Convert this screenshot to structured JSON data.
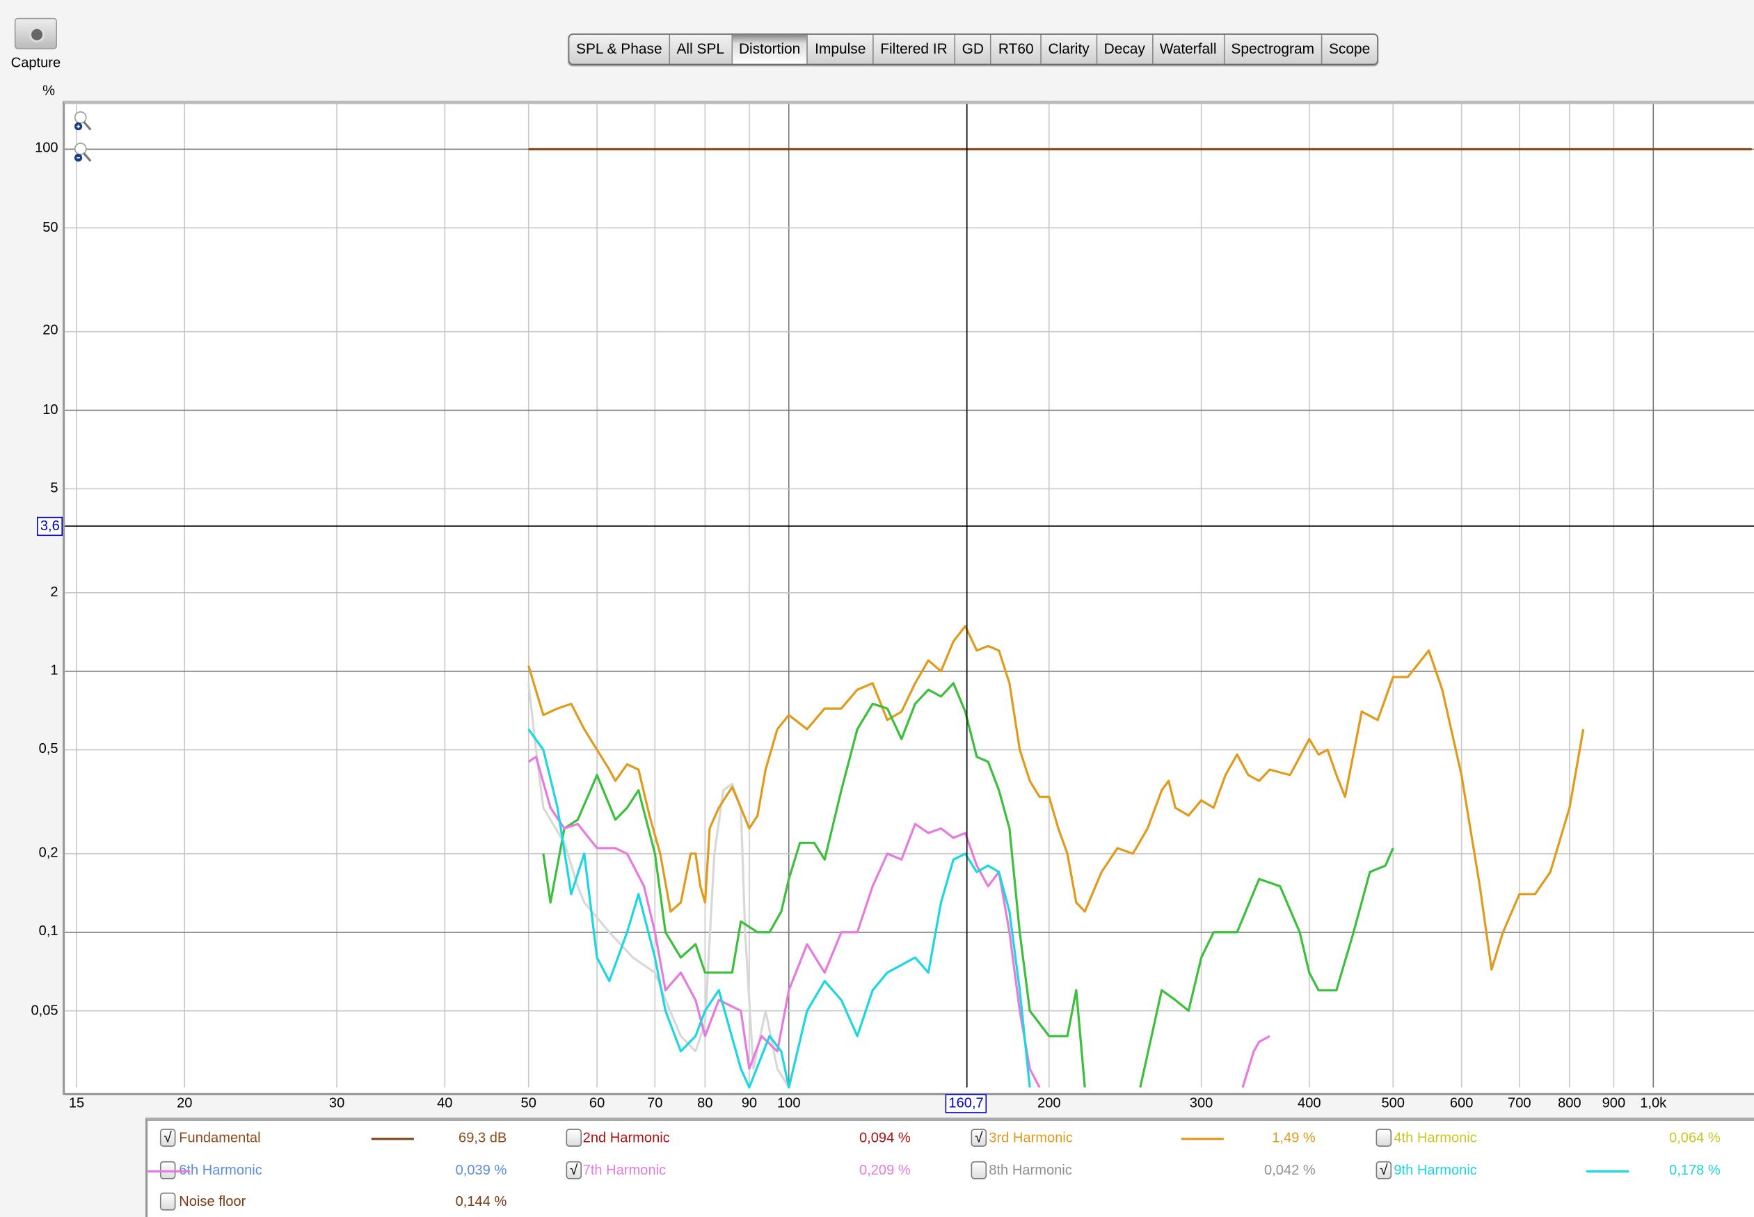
{
  "capture": {
    "label": "Capture",
    "icon": "camera-icon"
  },
  "toolbar": {
    "tabs": [
      "SPL & Phase",
      "All SPL",
      "Distortion",
      "Impulse",
      "Filtered IR",
      "GD",
      "RT60",
      "Clarity",
      "Decay",
      "Waterfall",
      "Spectrogram",
      "Scope"
    ],
    "active": "Distortion"
  },
  "cursor": {
    "x_readout": "160,7",
    "y_readout": "3,6"
  },
  "chart_data": {
    "type": "line",
    "yunit": "%",
    "xscale": "log",
    "yscale": "log",
    "xlim": [
      14.5,
      1300
    ],
    "ylim": [
      0.025,
      147
    ],
    "grid": true,
    "x_ticks": [
      15,
      20,
      30,
      40,
      50,
      60,
      70,
      80,
      90,
      100,
      200,
      300,
      400,
      500,
      600,
      700,
      800,
      900,
      1000
    ],
    "x_tick_labels": [
      "15",
      "20",
      "30",
      "40",
      "50",
      "60",
      "70",
      "80",
      "90",
      "100",
      "200",
      "300",
      "400",
      "500",
      "600",
      "700",
      "800",
      "900",
      "1,0k"
    ],
    "y_ticks": [
      100,
      50,
      20,
      10,
      5,
      2,
      1,
      0.5,
      0.2,
      0.1,
      0.05
    ],
    "y_tick_labels": [
      "100",
      "50",
      "20",
      "10",
      "5",
      "2",
      "1",
      "0,5",
      "0,2",
      "0,1",
      "0,05"
    ],
    "cursor_x": 160.7,
    "cursor_y": 3.6,
    "series": [
      {
        "name": "Fundamental",
        "color": "#8b4a1c",
        "points": [
          [
            50,
            100
          ],
          [
            1300,
            100
          ]
        ]
      },
      {
        "color": "#d8d8d8",
        "points": [
          [
            50,
            0.9
          ],
          [
            51,
            0.5
          ],
          [
            52,
            0.3
          ],
          [
            55,
            0.22
          ],
          [
            57,
            0.15
          ],
          [
            58,
            0.13
          ],
          [
            62,
            0.1
          ],
          [
            66,
            0.08
          ],
          [
            70,
            0.07
          ],
          [
            72,
            0.055
          ],
          [
            75,
            0.04
          ],
          [
            78,
            0.035
          ],
          [
            80,
            0.045
          ],
          [
            82,
            0.2
          ],
          [
            84,
            0.35
          ],
          [
            86,
            0.37
          ],
          [
            88,
            0.3
          ],
          [
            89,
            0.1
          ],
          [
            91,
            0.03
          ],
          [
            94,
            0.05
          ],
          [
            97,
            0.03
          ],
          [
            100,
            0.025
          ]
        ]
      },
      {
        "name": "3rd Harmonic",
        "color": "#e09a1c",
        "points": [
          [
            50,
            1.05
          ],
          [
            52,
            0.68
          ],
          [
            54,
            0.72
          ],
          [
            56,
            0.75
          ],
          [
            58,
            0.6
          ],
          [
            60,
            0.5
          ],
          [
            62,
            0.42
          ],
          [
            63,
            0.38
          ],
          [
            65,
            0.44
          ],
          [
            67,
            0.42
          ],
          [
            69,
            0.28
          ],
          [
            71,
            0.2
          ],
          [
            73,
            0.12
          ],
          [
            75,
            0.13
          ],
          [
            77,
            0.2
          ],
          [
            78,
            0.2
          ],
          [
            79,
            0.15
          ],
          [
            80,
            0.13
          ],
          [
            81,
            0.25
          ],
          [
            83,
            0.3
          ],
          [
            86,
            0.36
          ],
          [
            88,
            0.3
          ],
          [
            90,
            0.25
          ],
          [
            92,
            0.28
          ],
          [
            94,
            0.42
          ],
          [
            97,
            0.6
          ],
          [
            100,
            0.68
          ],
          [
            105,
            0.6
          ],
          [
            110,
            0.72
          ],
          [
            115,
            0.72
          ],
          [
            120,
            0.85
          ],
          [
            125,
            0.9
          ],
          [
            130,
            0.65
          ],
          [
            135,
            0.7
          ],
          [
            140,
            0.9
          ],
          [
            145,
            1.1
          ],
          [
            150,
            1.0
          ],
          [
            155,
            1.3
          ],
          [
            160,
            1.49
          ],
          [
            165,
            1.2
          ],
          [
            170,
            1.25
          ],
          [
            175,
            1.2
          ],
          [
            180,
            0.9
          ],
          [
            185,
            0.5
          ],
          [
            190,
            0.38
          ],
          [
            195,
            0.33
          ],
          [
            200,
            0.33
          ],
          [
            205,
            0.25
          ],
          [
            210,
            0.2
          ],
          [
            215,
            0.13
          ],
          [
            220,
            0.12
          ],
          [
            230,
            0.17
          ],
          [
            240,
            0.21
          ],
          [
            250,
            0.2
          ],
          [
            260,
            0.25
          ],
          [
            270,
            0.35
          ],
          [
            275,
            0.38
          ],
          [
            280,
            0.3
          ],
          [
            290,
            0.28
          ],
          [
            300,
            0.32
          ],
          [
            310,
            0.3
          ],
          [
            320,
            0.4
          ],
          [
            330,
            0.48
          ],
          [
            340,
            0.4
          ],
          [
            350,
            0.38
          ],
          [
            360,
            0.42
          ],
          [
            380,
            0.4
          ],
          [
            400,
            0.55
          ],
          [
            410,
            0.48
          ],
          [
            420,
            0.5
          ],
          [
            430,
            0.4
          ],
          [
            440,
            0.33
          ],
          [
            460,
            0.7
          ],
          [
            480,
            0.65
          ],
          [
            500,
            0.95
          ],
          [
            520,
            0.95
          ],
          [
            550,
            1.2
          ],
          [
            570,
            0.85
          ],
          [
            600,
            0.4
          ],
          [
            630,
            0.15
          ],
          [
            650,
            0.072
          ],
          [
            670,
            0.1
          ],
          [
            700,
            0.14
          ],
          [
            730,
            0.14
          ],
          [
            760,
            0.17
          ],
          [
            800,
            0.3
          ],
          [
            830,
            0.6
          ]
        ]
      },
      {
        "color": "#3cbf3c",
        "points": [
          [
            52,
            0.2
          ],
          [
            53,
            0.13
          ],
          [
            55,
            0.25
          ],
          [
            57,
            0.27
          ],
          [
            60,
            0.4
          ],
          [
            63,
            0.27
          ],
          [
            65,
            0.3
          ],
          [
            67,
            0.35
          ],
          [
            70,
            0.2
          ],
          [
            72,
            0.1
          ],
          [
            75,
            0.08
          ],
          [
            78,
            0.09
          ],
          [
            80,
            0.07
          ],
          [
            83,
            0.07
          ],
          [
            86,
            0.07
          ],
          [
            88,
            0.11
          ],
          [
            92,
            0.1
          ],
          [
            95,
            0.1
          ],
          [
            98,
            0.12
          ],
          [
            100,
            0.16
          ],
          [
            103,
            0.22
          ],
          [
            107,
            0.22
          ],
          [
            110,
            0.19
          ],
          [
            115,
            0.35
          ],
          [
            120,
            0.6
          ],
          [
            125,
            0.75
          ],
          [
            130,
            0.72
          ],
          [
            135,
            0.55
          ],
          [
            140,
            0.75
          ],
          [
            145,
            0.85
          ],
          [
            150,
            0.8
          ],
          [
            155,
            0.9
          ],
          [
            160,
            0.7
          ],
          [
            165,
            0.47
          ],
          [
            170,
            0.45
          ],
          [
            175,
            0.35
          ],
          [
            180,
            0.25
          ],
          [
            185,
            0.1
          ],
          [
            190,
            0.05
          ],
          [
            200,
            0.04
          ],
          [
            210,
            0.04
          ],
          [
            215,
            0.06
          ],
          [
            220,
            0.025
          ]
        ]
      },
      {
        "color": "#3cbf3c",
        "points": [
          [
            255,
            0.025
          ],
          [
            270,
            0.06
          ],
          [
            280,
            0.055
          ],
          [
            290,
            0.05
          ],
          [
            300,
            0.08
          ],
          [
            310,
            0.1
          ],
          [
            330,
            0.1
          ],
          [
            350,
            0.16
          ],
          [
            370,
            0.15
          ],
          [
            390,
            0.1
          ],
          [
            400,
            0.07
          ],
          [
            410,
            0.06
          ],
          [
            430,
            0.06
          ],
          [
            450,
            0.1
          ],
          [
            470,
            0.17
          ],
          [
            490,
            0.18
          ],
          [
            500,
            0.21
          ]
        ]
      },
      {
        "name": "7th Harmonic",
        "color": "#e57ae0",
        "points": [
          [
            50,
            0.45
          ],
          [
            51,
            0.47
          ],
          [
            53,
            0.3
          ],
          [
            55,
            0.25
          ],
          [
            57,
            0.26
          ],
          [
            60,
            0.21
          ],
          [
            63,
            0.21
          ],
          [
            65,
            0.2
          ],
          [
            68,
            0.15
          ],
          [
            70,
            0.1
          ],
          [
            72,
            0.06
          ],
          [
            75,
            0.07
          ],
          [
            78,
            0.055
          ],
          [
            80,
            0.04
          ],
          [
            83,
            0.055
          ],
          [
            88,
            0.05
          ],
          [
            90,
            0.03
          ],
          [
            93,
            0.04
          ],
          [
            97,
            0.035
          ],
          [
            100,
            0.06
          ],
          [
            105,
            0.09
          ],
          [
            110,
            0.07
          ],
          [
            115,
            0.1
          ],
          [
            120,
            0.1
          ],
          [
            125,
            0.15
          ],
          [
            130,
            0.2
          ],
          [
            135,
            0.19
          ],
          [
            140,
            0.26
          ],
          [
            145,
            0.24
          ],
          [
            150,
            0.25
          ],
          [
            155,
            0.23
          ],
          [
            160,
            0.24
          ],
          [
            165,
            0.18
          ],
          [
            170,
            0.15
          ],
          [
            175,
            0.17
          ],
          [
            180,
            0.1
          ],
          [
            185,
            0.05
          ],
          [
            190,
            0.03
          ],
          [
            195,
            0.025
          ]
        ]
      },
      {
        "color": "#e57ae0",
        "points": [
          [
            335,
            0.025
          ],
          [
            345,
            0.035
          ],
          [
            350,
            0.038
          ],
          [
            360,
            0.04
          ]
        ]
      },
      {
        "name": "9th Harmonic",
        "color": "#1cd6e0",
        "points": [
          [
            50,
            0.6
          ],
          [
            52,
            0.5
          ],
          [
            54,
            0.3
          ],
          [
            56,
            0.14
          ],
          [
            58,
            0.2
          ],
          [
            60,
            0.08
          ],
          [
            62,
            0.065
          ],
          [
            65,
            0.1
          ],
          [
            67,
            0.14
          ],
          [
            70,
            0.08
          ],
          [
            72,
            0.05
          ],
          [
            75,
            0.035
          ],
          [
            78,
            0.04
          ],
          [
            80,
            0.05
          ],
          [
            83,
            0.06
          ],
          [
            88,
            0.03
          ],
          [
            90,
            0.025
          ],
          [
            95,
            0.04
          ],
          [
            98,
            0.035
          ],
          [
            100,
            0.025
          ],
          [
            105,
            0.05
          ],
          [
            110,
            0.065
          ],
          [
            115,
            0.055
          ],
          [
            120,
            0.04
          ],
          [
            125,
            0.06
          ],
          [
            130,
            0.07
          ],
          [
            140,
            0.08
          ],
          [
            145,
            0.07
          ],
          [
            150,
            0.13
          ],
          [
            155,
            0.19
          ],
          [
            160,
            0.2
          ],
          [
            165,
            0.17
          ],
          [
            170,
            0.18
          ],
          [
            175,
            0.17
          ],
          [
            180,
            0.12
          ],
          [
            185,
            0.06
          ],
          [
            190,
            0.025
          ]
        ]
      }
    ]
  },
  "legend": [
    {
      "label": "Fundamental",
      "value": "69,3 dB",
      "checked": true,
      "color": "#8b4a1c",
      "line": true
    },
    {
      "label": "2nd Harmonic",
      "value": "0,094 %",
      "checked": false,
      "color": "#b01010",
      "line": false
    },
    {
      "label": "3rd Harmonic",
      "value": "1,49 %",
      "checked": true,
      "color": "#e09a1c",
      "line": true
    },
    {
      "label": "4th Harmonic",
      "value": "0,064 %",
      "checked": false,
      "color": "#c8c820",
      "line": false
    },
    {
      "label": "6th Harmonic",
      "value": "0,039 %",
      "checked": false,
      "color": "#5a8ee0",
      "line": false
    },
    {
      "label": "7th Harmonic",
      "value": "0,209 %",
      "checked": true,
      "color": "#e57ae0",
      "line": true
    },
    {
      "label": "8th Harmonic",
      "value": "0,042 %",
      "checked": false,
      "color": "#909090",
      "line": false
    },
    {
      "label": "9th Harmonic",
      "value": "0,178 %",
      "checked": true,
      "color": "#1cd6e0",
      "line": true
    },
    {
      "label": "Noise floor",
      "value": "0,144 %",
      "checked": false,
      "color": "#7a3a10",
      "line": false
    }
  ]
}
